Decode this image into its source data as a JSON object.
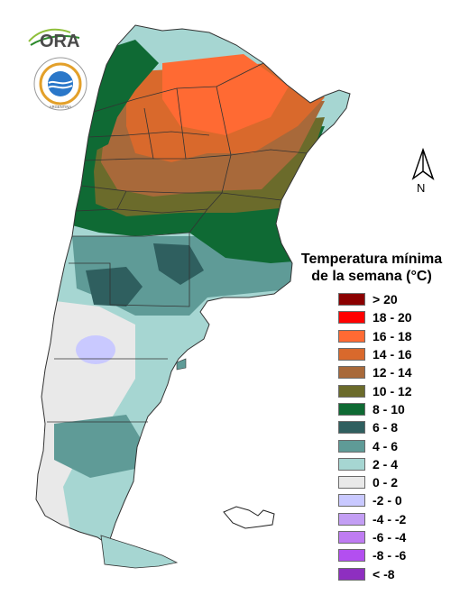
{
  "logo": {
    "ora_text": "ORA",
    "smn_ring_text": "SERVICIO METEOROLÓGICO NACIONAL",
    "smn_country_text": "ARGENTINA"
  },
  "north_arrow": {
    "label": "N"
  },
  "legend": {
    "title_line1": "Temperatura mínima",
    "title_line2": "de la semana (°C)",
    "items": [
      {
        "label": "> 20",
        "color": "#8b0000"
      },
      {
        "label": "18 - 20",
        "color": "#ff0000"
      },
      {
        "label": "16 - 18",
        "color": "#ff6a33"
      },
      {
        "label": "14 - 16",
        "color": "#d9692c"
      },
      {
        "label": "12 - 14",
        "color": "#a8693a"
      },
      {
        "label": "10 - 12",
        "color": "#6b6b2b"
      },
      {
        "label": "8 - 10",
        "color": "#0f6a34"
      },
      {
        "label": "6 - 8",
        "color": "#2f5f5f"
      },
      {
        "label": "4 - 6",
        "color": "#5f9b97"
      },
      {
        "label": "2 - 4",
        "color": "#a6d6d2"
      },
      {
        "label": "0 - 2",
        "color": "#e9e9e9"
      },
      {
        "label": "-2 - 0",
        "color": "#c9c9ff"
      },
      {
        "label": "-4 - -2",
        "color": "#c39ef4"
      },
      {
        "label": "-6 - -4",
        "color": "#bf7cf2"
      },
      {
        "label": "-8 - -6",
        "color": "#b34ff0"
      },
      {
        "label": "< -8",
        "color": "#8e2fc0"
      }
    ]
  }
}
